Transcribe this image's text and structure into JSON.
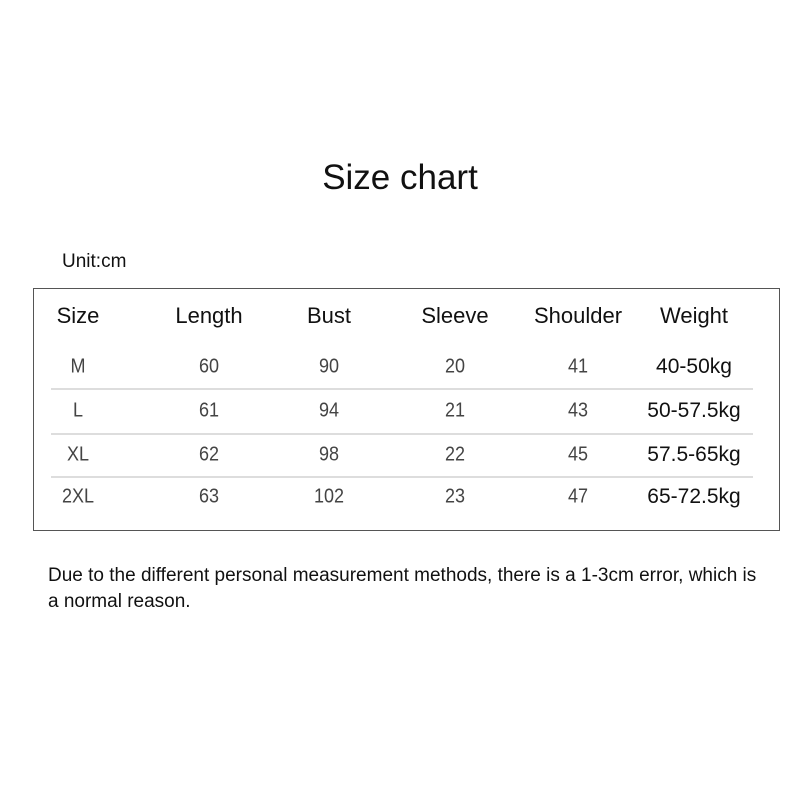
{
  "title": "Size chart",
  "unit": "Unit:cm",
  "table": {
    "headers": [
      "Size",
      "Length",
      "Bust",
      "Sleeve",
      "Shoulder",
      "Weight"
    ],
    "rows": [
      [
        "M",
        "60",
        "90",
        "20",
        "41",
        "40-50kg"
      ],
      [
        "L",
        "61",
        "94",
        "21",
        "43",
        "50-57.5kg"
      ],
      [
        "XL",
        "62",
        "98",
        "22",
        "45",
        "57.5-65kg"
      ],
      [
        "2XL",
        "63",
        "102",
        "23",
        "47",
        "65-72.5kg"
      ]
    ]
  },
  "note": "Due to the different personal measurement methods, there is a 1-3cm error, which is a normal reason."
}
